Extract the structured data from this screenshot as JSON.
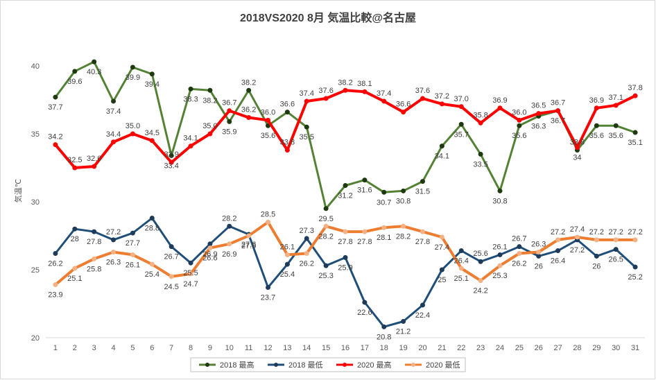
{
  "chart_data": {
    "type": "line",
    "title": "2018VS2020 8月 気温比較@名古屋",
    "ylabel": "気温℃",
    "xlabel": "",
    "ylim": [
      20,
      41.5
    ],
    "yticks": [
      20,
      25,
      30,
      35,
      40
    ],
    "x": [
      1,
      2,
      3,
      4,
      5,
      6,
      7,
      8,
      9,
      10,
      11,
      12,
      13,
      14,
      15,
      16,
      17,
      18,
      19,
      20,
      21,
      22,
      23,
      24,
      25,
      26,
      27,
      28,
      29,
      30,
      31
    ],
    "grid": false,
    "legend": "bottom",
    "series": [
      {
        "name": "2018 最高",
        "color": "#548235",
        "width": 3,
        "marker": "#1f3a10",
        "values": [
          37.7,
          39.6,
          40.3,
          37.4,
          39.9,
          39.4,
          33.4,
          38.3,
          38.2,
          35.9,
          38.2,
          35.6,
          36.6,
          35.5,
          29.5,
          31.2,
          31.6,
          30.7,
          30.8,
          31.5,
          34.1,
          35.7,
          33.5,
          30.8,
          35.6,
          36.3,
          36.7,
          33.8,
          35.6,
          35.6,
          35.1
        ],
        "labels": [
          "37.7",
          "39.6",
          "40.3",
          "37.4",
          "39.9",
          "39.4",
          "33.4",
          "38.3",
          "38.2",
          "35.9",
          "38.2",
          "35.6",
          "36.6",
          "35.5",
          "29.5",
          "31.2",
          "31.6",
          "30.7",
          "30.8",
          "31.5",
          "34.1",
          "35.7",
          "33.5",
          "30.8",
          "35.6",
          "36.3",
          "36.7",
          "33.8",
          "35.6",
          "35.6",
          "35.1"
        ],
        "label_pos": [
          "below",
          "below",
          "below",
          "below",
          "below",
          "below",
          "below",
          "below",
          "below",
          "below",
          "above",
          "below",
          "above",
          "below",
          "below",
          "below",
          "below",
          "below",
          "below",
          "below",
          "below",
          "below",
          "below",
          "below",
          "below",
          "below",
          "below",
          "above",
          "below",
          "below",
          "below"
        ]
      },
      {
        "name": "2018 最低",
        "color": "#1f4e79",
        "width": 3,
        "marker": "#1f3b5a",
        "values": [
          26.2,
          28,
          27.8,
          27.2,
          27.7,
          28.8,
          26.7,
          25.5,
          26.9,
          28.2,
          27.6,
          23.7,
          25.4,
          27.3,
          25.3,
          25.9,
          22.6,
          20.8,
          21.2,
          22.4,
          25,
          26.4,
          25.6,
          26.1,
          26.7,
          26,
          26.4,
          27.2,
          26,
          26.5,
          25.2
        ],
        "labels": [
          "26.2",
          "28",
          "27.8",
          "27.2",
          "27.7",
          "28.8",
          "26.7",
          "25.5",
          "26.9",
          "28.2",
          "27.6",
          "23.7",
          "25.4",
          "27.3",
          "25.3",
          "25.9",
          "22.6",
          "20.8",
          "21.2",
          "22.4",
          "25",
          "26.4",
          "25.6",
          "26.1",
          "26.7",
          "26",
          "26.4",
          "27.2",
          "26",
          "26.5",
          "25.2"
        ],
        "label_pos": [
          "below",
          "below",
          "below",
          "above",
          "below",
          "below",
          "below",
          "below",
          "below",
          "above",
          "below",
          "below",
          "below",
          "above",
          "below",
          "below",
          "below",
          "below",
          "below",
          "below",
          "below",
          "below",
          "above",
          "above",
          "above",
          "below",
          "below",
          "below",
          "below",
          "below",
          "below"
        ]
      },
      {
        "name": "2020 最高",
        "color": "#ff0000",
        "width": 4,
        "marker": "#ff0000",
        "values": [
          34.2,
          32.5,
          32.6,
          34.4,
          35,
          34.5,
          32.9,
          34.1,
          35,
          36.7,
          36.2,
          36,
          33.8,
          37.4,
          37.6,
          38.2,
          38.1,
          37.4,
          36.6,
          37.6,
          37.2,
          37,
          35.8,
          36.9,
          36,
          36.5,
          36.7,
          34,
          36.9,
          37.1,
          37.8
        ],
        "labels": [
          "34.2",
          "32.5",
          "32.6",
          "34.4",
          "35.0",
          "34.5",
          "32.9",
          "34.1",
          "35.0",
          "36.7",
          "36.2",
          "36.0",
          "33.8",
          "37.4",
          "37.6",
          "38.2",
          "38.1",
          "37.4",
          "36.6",
          "37.6",
          "37.2",
          "37.0",
          "35.8",
          "36.9",
          "36.0",
          "36.5",
          "36.7",
          "34",
          "36.9",
          "37.1",
          "37.8"
        ],
        "label_pos": [
          "above",
          "above",
          "above",
          "above",
          "above",
          "above",
          "above",
          "above",
          "above",
          "above",
          "above",
          "above",
          "above",
          "above",
          "above",
          "above",
          "above",
          "above",
          "above",
          "above",
          "above",
          "above",
          "above",
          "above",
          "above",
          "above",
          "above",
          "below",
          "above",
          "above",
          "above"
        ]
      },
      {
        "name": "2020 最低",
        "color": "#ed7d31",
        "width": 4,
        "marker": "#f4b183",
        "values": [
          23.9,
          25.1,
          25.8,
          26.3,
          26.1,
          25.4,
          24.5,
          24.7,
          26.6,
          26.9,
          27.5,
          28.5,
          26.1,
          26.2,
          28.2,
          27.8,
          27.8,
          28.1,
          28.2,
          27.8,
          27.4,
          25.1,
          24.2,
          25.3,
          26.2,
          26.3,
          27.2,
          27.4,
          27.2,
          27.2,
          27.2
        ],
        "labels": [
          "23.9",
          "25.1",
          "25.8",
          "26.3",
          "26.1",
          "25.4",
          "24.5",
          "24.7",
          "26.6",
          "26.9",
          "27.5",
          "28.5",
          "26.1",
          "26.2",
          "28.2",
          "27.8",
          "27.8",
          "28.1",
          "28.2",
          "27.8",
          "27.4",
          "25.1",
          "24.2",
          "25.3",
          "26.2",
          "26.3",
          "27.2",
          "27.4",
          "27.2",
          "27.2",
          "27.2"
        ],
        "label_pos": [
          "below",
          "below",
          "below",
          "below",
          "below",
          "below",
          "below",
          "below",
          "below",
          "below",
          "below",
          "above",
          "above",
          "below",
          "below",
          "below",
          "below",
          "below",
          "below",
          "below",
          "below",
          "below",
          "below",
          "below",
          "below",
          "above",
          "above",
          "above",
          "above",
          "above",
          "above"
        ]
      }
    ]
  }
}
